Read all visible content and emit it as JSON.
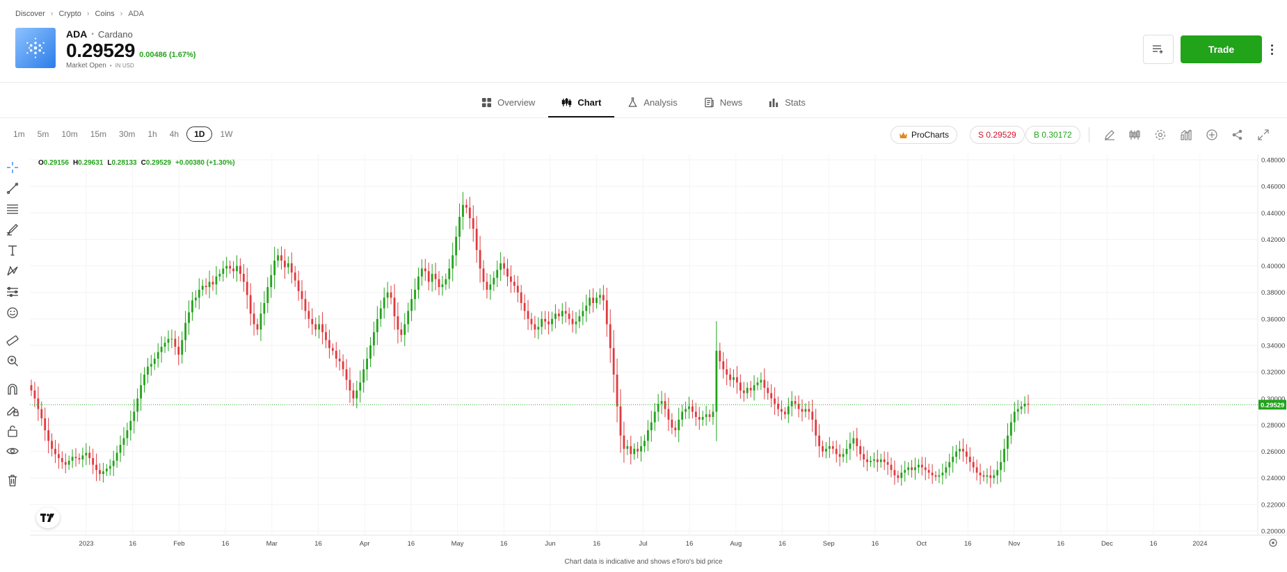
{
  "breadcrumb": [
    "Discover",
    "Crypto",
    "Coins",
    "ADA"
  ],
  "instrument": {
    "symbol": "ADA",
    "name": "Cardano",
    "price": "0.29529",
    "change": "0.00486 (1.67%)",
    "market_status": "Market Open",
    "currency": "IN USD"
  },
  "actions": {
    "trade_label": "Trade",
    "watchlist_icon": "add-to-watchlist-icon",
    "more_icon": "more-vertical-icon"
  },
  "tabs": [
    {
      "label": "Overview",
      "icon": "grid-icon",
      "active": false
    },
    {
      "label": "Chart",
      "icon": "candles-icon",
      "active": true
    },
    {
      "label": "Analysis",
      "icon": "flask-icon",
      "active": false
    },
    {
      "label": "News",
      "icon": "news-icon",
      "active": false
    },
    {
      "label": "Stats",
      "icon": "bars-icon",
      "active": false
    }
  ],
  "intervals": [
    "1m",
    "5m",
    "10m",
    "15m",
    "30m",
    "1h",
    "4h",
    "1D",
    "1W"
  ],
  "active_interval": "1D",
  "toolbar": {
    "procharts_label": "ProCharts",
    "sell_label": "S 0.29529",
    "buy_label": "B 0.30172"
  },
  "colors": {
    "up": "#21a31a",
    "down": "#e0393e",
    "accent": "#21a31a",
    "sell": "#d3122b"
  },
  "ohlc": {
    "o_label": "O",
    "o": "0.29156",
    "h_label": "H",
    "h": "0.29631",
    "l_label": "L",
    "l": "0.28133",
    "c_label": "C",
    "c": "0.29529",
    "change": "+0.00380 (+1.30%)"
  },
  "chart_data": {
    "type": "candlestick",
    "y_axis_ticks": [
      "0.48000",
      "0.46000",
      "0.44000",
      "0.42000",
      "0.40000",
      "0.38000",
      "0.36000",
      "0.34000",
      "0.32000",
      "0.30000",
      "0.28000",
      "0.26000",
      "0.24000",
      "0.22000",
      "0.20000"
    ],
    "ylim": [
      0.2,
      0.48
    ],
    "x_axis_ticks": [
      "2023",
      "16",
      "Feb",
      "16",
      "Mar",
      "16",
      "Apr",
      "16",
      "May",
      "16",
      "Jun",
      "16",
      "Jul",
      "16",
      "Aug",
      "16",
      "Sep",
      "16",
      "Oct",
      "16",
      "Nov",
      "16",
      "Dec",
      "16",
      "2024"
    ],
    "current_price_label": "0.29529",
    "current_price": 0.29529,
    "close_series": [
      0.306,
      0.3,
      0.292,
      0.285,
      0.276,
      0.268,
      0.262,
      0.258,
      0.255,
      0.252,
      0.25,
      0.253,
      0.256,
      0.255,
      0.254,
      0.257,
      0.259,
      0.255,
      0.25,
      0.246,
      0.243,
      0.245,
      0.247,
      0.249,
      0.253,
      0.259,
      0.265,
      0.27,
      0.276,
      0.283,
      0.29,
      0.3,
      0.31,
      0.318,
      0.324,
      0.326,
      0.33,
      0.335,
      0.339,
      0.342,
      0.345,
      0.345,
      0.339,
      0.333,
      0.344,
      0.357,
      0.365,
      0.374,
      0.376,
      0.382,
      0.385,
      0.384,
      0.388,
      0.386,
      0.392,
      0.394,
      0.398,
      0.4,
      0.398,
      0.396,
      0.4,
      0.394,
      0.388,
      0.378,
      0.364,
      0.356,
      0.352,
      0.364,
      0.372,
      0.384,
      0.393,
      0.404,
      0.408,
      0.404,
      0.399,
      0.402,
      0.395,
      0.389,
      0.381,
      0.375,
      0.366,
      0.36,
      0.356,
      0.352,
      0.356,
      0.35,
      0.344,
      0.338,
      0.336,
      0.33,
      0.328,
      0.322,
      0.314,
      0.306,
      0.3,
      0.306,
      0.312,
      0.322,
      0.33,
      0.34,
      0.35,
      0.36,
      0.368,
      0.376,
      0.38,
      0.376,
      0.362,
      0.352,
      0.348,
      0.356,
      0.366,
      0.375,
      0.382,
      0.392,
      0.398,
      0.396,
      0.388,
      0.394,
      0.39,
      0.384,
      0.386,
      0.39,
      0.398,
      0.408,
      0.422,
      0.437,
      0.446,
      0.444,
      0.436,
      0.428,
      0.412,
      0.398,
      0.388,
      0.382,
      0.386,
      0.391,
      0.397,
      0.402,
      0.398,
      0.392,
      0.388,
      0.385,
      0.38,
      0.372,
      0.366,
      0.36,
      0.356,
      0.352,
      0.354,
      0.36,
      0.358,
      0.356,
      0.36,
      0.364,
      0.362,
      0.366,
      0.364,
      0.36,
      0.356,
      0.358,
      0.362,
      0.366,
      0.37,
      0.376,
      0.372,
      0.376,
      0.378,
      0.374,
      0.356,
      0.338,
      0.318,
      0.294,
      0.272,
      0.262,
      0.264,
      0.258,
      0.262,
      0.26,
      0.264,
      0.268,
      0.276,
      0.282,
      0.29,
      0.296,
      0.298,
      0.292,
      0.284,
      0.278,
      0.276,
      0.284,
      0.29,
      0.292,
      0.294,
      0.29,
      0.286,
      0.284,
      0.286,
      0.288,
      0.286,
      0.29,
      0.336,
      0.328,
      0.322,
      0.318,
      0.314,
      0.316,
      0.312,
      0.306,
      0.304,
      0.308,
      0.306,
      0.31,
      0.312,
      0.314,
      0.308,
      0.304,
      0.3,
      0.296,
      0.292,
      0.29,
      0.288,
      0.294,
      0.298,
      0.296,
      0.292,
      0.29,
      0.292,
      0.29,
      0.284,
      0.272,
      0.264,
      0.26,
      0.262,
      0.264,
      0.262,
      0.258,
      0.256,
      0.258,
      0.262,
      0.266,
      0.27,
      0.264,
      0.258,
      0.254,
      0.252,
      0.253,
      0.254,
      0.252,
      0.254,
      0.252,
      0.25,
      0.246,
      0.242,
      0.24,
      0.244,
      0.246,
      0.248,
      0.246,
      0.248,
      0.25,
      0.248,
      0.246,
      0.244,
      0.242,
      0.241,
      0.242,
      0.244,
      0.248,
      0.252,
      0.256,
      0.26,
      0.262,
      0.26,
      0.256,
      0.252,
      0.248,
      0.244,
      0.242,
      0.241,
      0.242,
      0.24,
      0.242,
      0.246,
      0.252,
      0.262,
      0.272,
      0.282,
      0.29,
      0.292,
      0.294,
      0.296,
      0.29529
    ],
    "x_ticks_count": 25
  },
  "footer_note": "Chart data is indicative and shows eToro's bid price"
}
